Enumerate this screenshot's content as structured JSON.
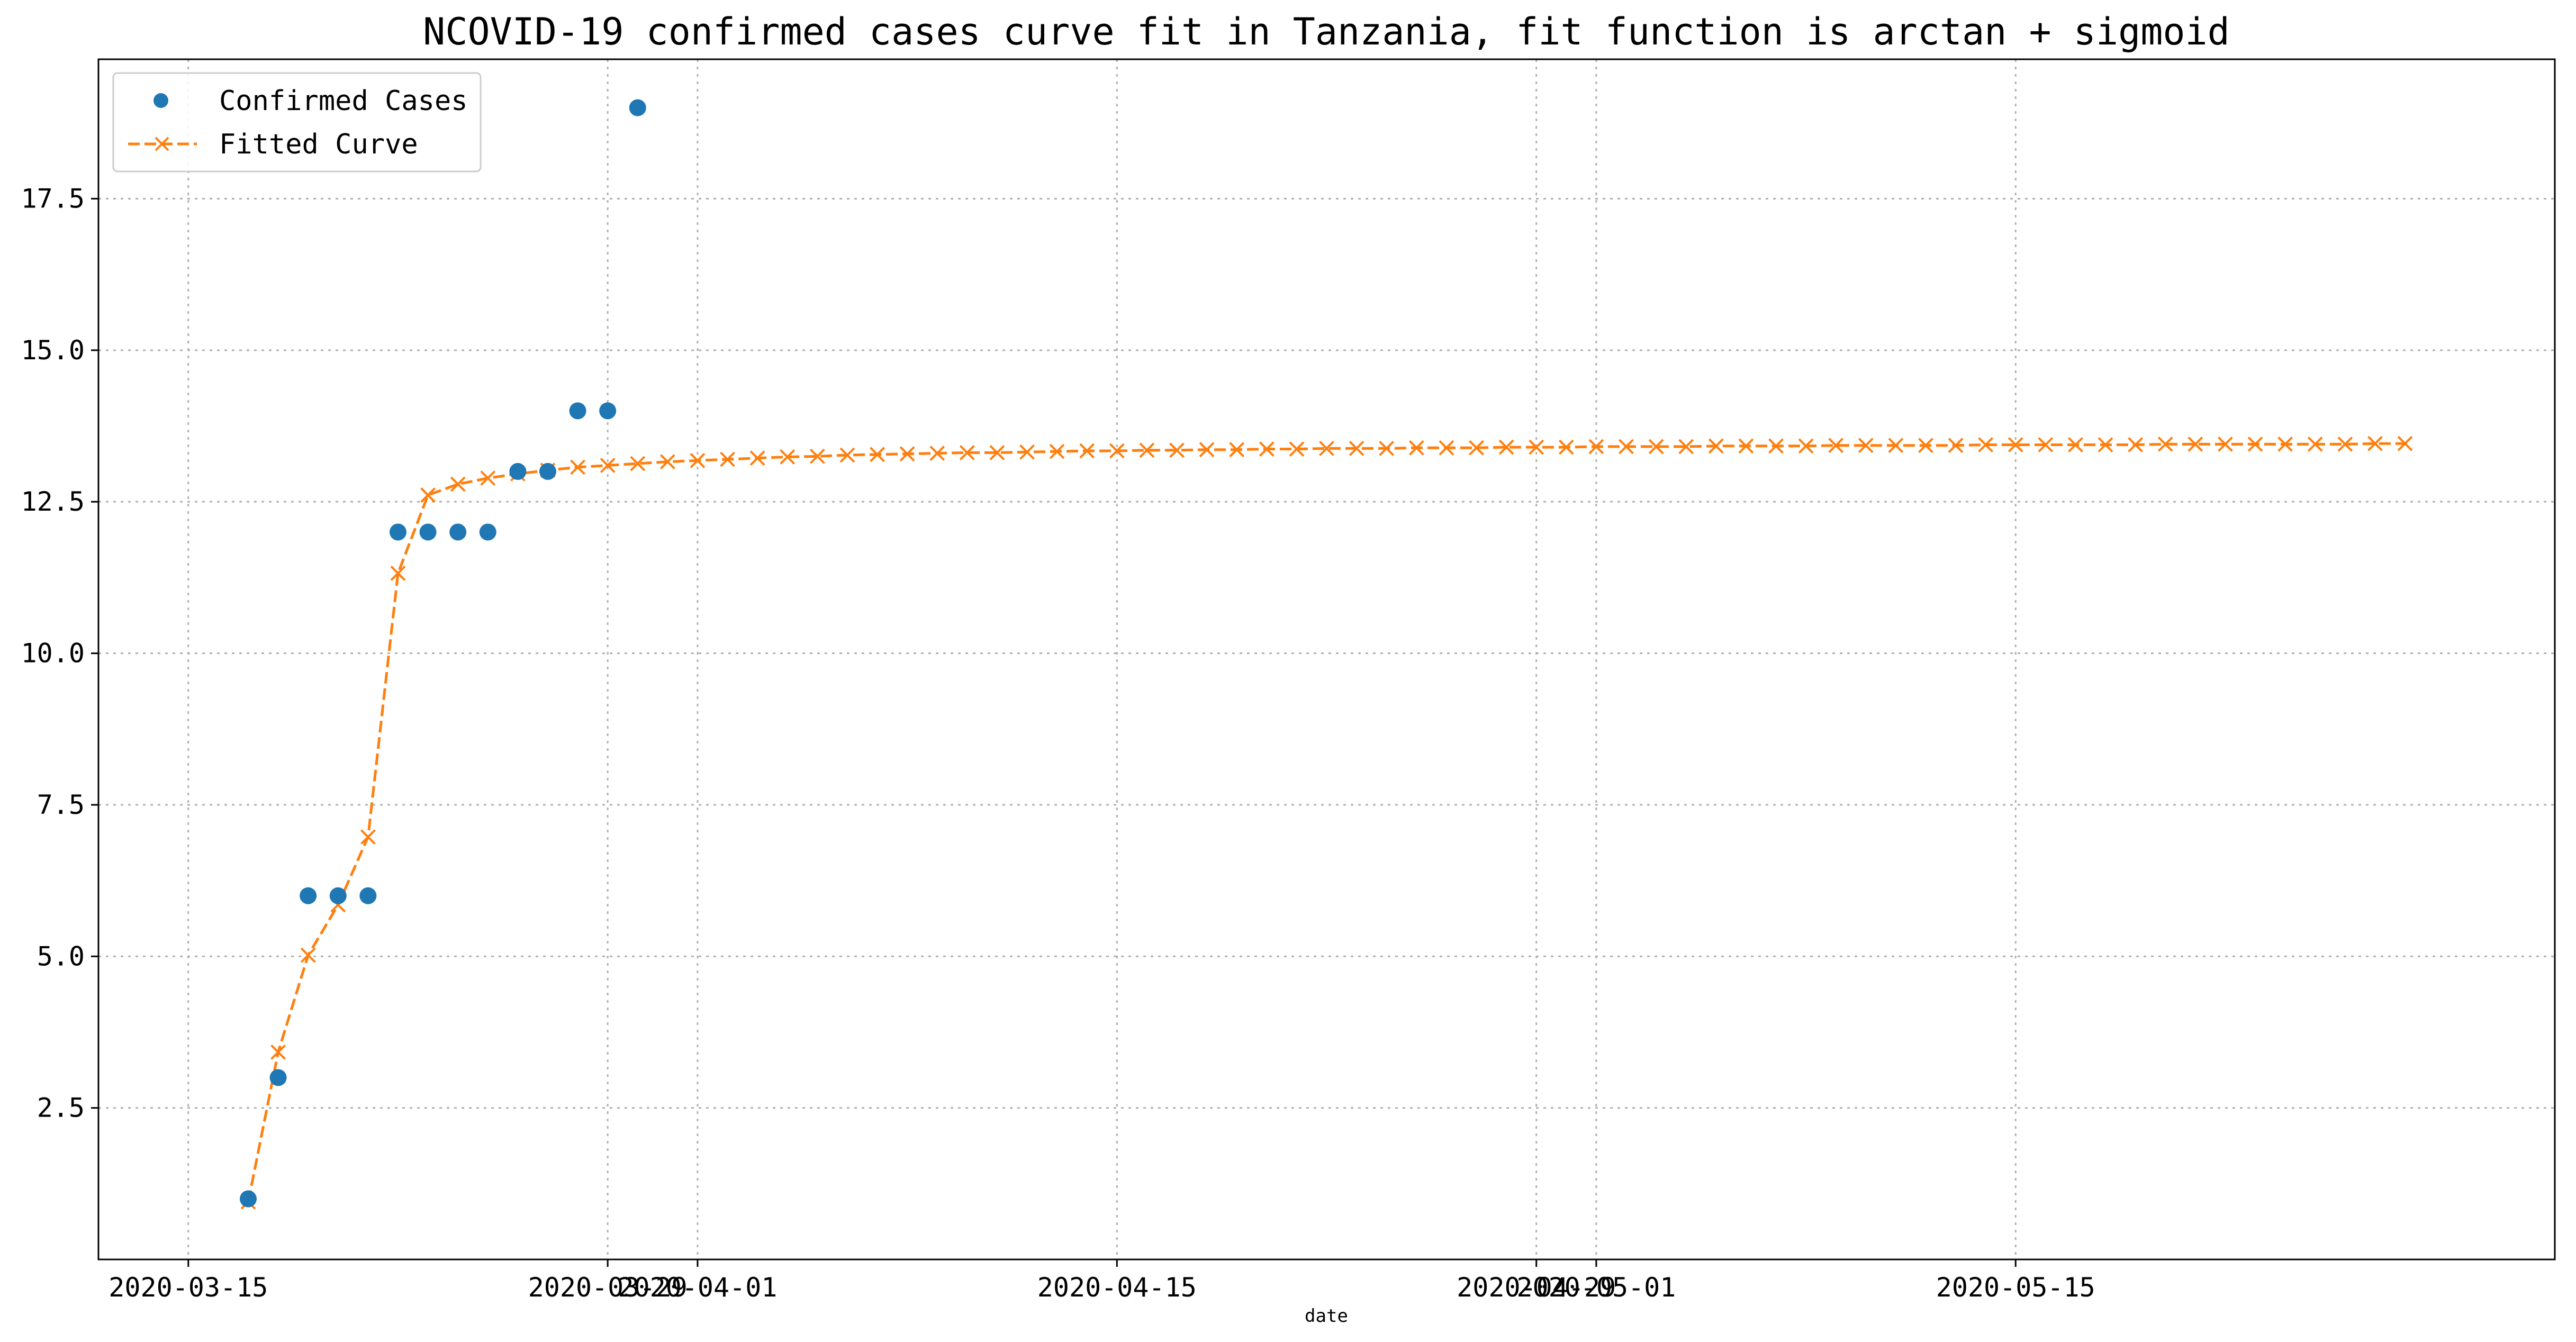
{
  "chart_data": {
    "type": "line",
    "title": "NCOVID-19 confirmed cases curve fit in Tanzania, fit function is arctan + sigmoid",
    "xlabel": "date",
    "ylabel": "",
    "xlim": [
      "2020-03-12",
      "2020-06-02"
    ],
    "ylim": [
      0,
      19.8
    ],
    "grid": true,
    "legend_position": "top-left",
    "x_ticks": [
      "2020-03-15",
      "2020-03-29",
      "2020-04-01",
      "2020-04-15",
      "2020-04-29",
      "2020-05-01",
      "2020-05-15"
    ],
    "x_tick_labels": [
      "2020-03-15",
      "2020-03-29",
      "2020-04-01",
      "2020-04-15",
      "2020-04-29",
      "2020-05-01",
      "2020-05-15"
    ],
    "y_ticks": [
      2.5,
      5.0,
      7.5,
      10.0,
      12.5,
      15.0,
      17.5
    ],
    "y_tick_labels": [
      "2.5",
      "5.0",
      "7.5",
      "10.0",
      "12.5",
      "15.0",
      "17.5"
    ],
    "series": [
      {
        "name": "Confirmed Cases",
        "style": "points",
        "color": "#1f77b4",
        "marker": "circle",
        "x": [
          "2020-03-17",
          "2020-03-18",
          "2020-03-19",
          "2020-03-20",
          "2020-03-21",
          "2020-03-22",
          "2020-03-23",
          "2020-03-24",
          "2020-03-25",
          "2020-03-26",
          "2020-03-27",
          "2020-03-28",
          "2020-03-29",
          "2020-03-30"
        ],
        "values": [
          1,
          3,
          6,
          6,
          6,
          12,
          12,
          12,
          12,
          13,
          13,
          14,
          14,
          19
        ]
      },
      {
        "name": "Fitted Curve",
        "style": "dashed-line",
        "color": "#ff7f0e",
        "marker": "x",
        "x_start": "2020-03-17",
        "x_step_days": 1,
        "values": [
          0.95,
          3.42,
          5.02,
          5.85,
          6.97,
          11.32,
          12.61,
          12.79,
          12.89,
          12.96,
          13.02,
          13.07,
          13.1,
          13.13,
          13.16,
          13.18,
          13.2,
          13.22,
          13.24,
          13.25,
          13.27,
          13.28,
          13.29,
          13.3,
          13.31,
          13.31,
          13.32,
          13.33,
          13.34,
          13.34,
          13.35,
          13.35,
          13.36,
          13.36,
          13.37,
          13.37,
          13.38,
          13.38,
          13.38,
          13.39,
          13.39,
          13.39,
          13.4,
          13.4,
          13.4,
          13.41,
          13.41,
          13.41,
          13.41,
          13.42,
          13.42,
          13.42,
          13.42,
          13.43,
          13.43,
          13.43,
          13.43,
          13.43,
          13.44,
          13.44,
          13.44,
          13.44,
          13.44,
          13.44,
          13.45,
          13.45,
          13.45,
          13.45,
          13.45,
          13.45,
          13.45,
          13.46,
          13.46
        ]
      }
    ]
  }
}
